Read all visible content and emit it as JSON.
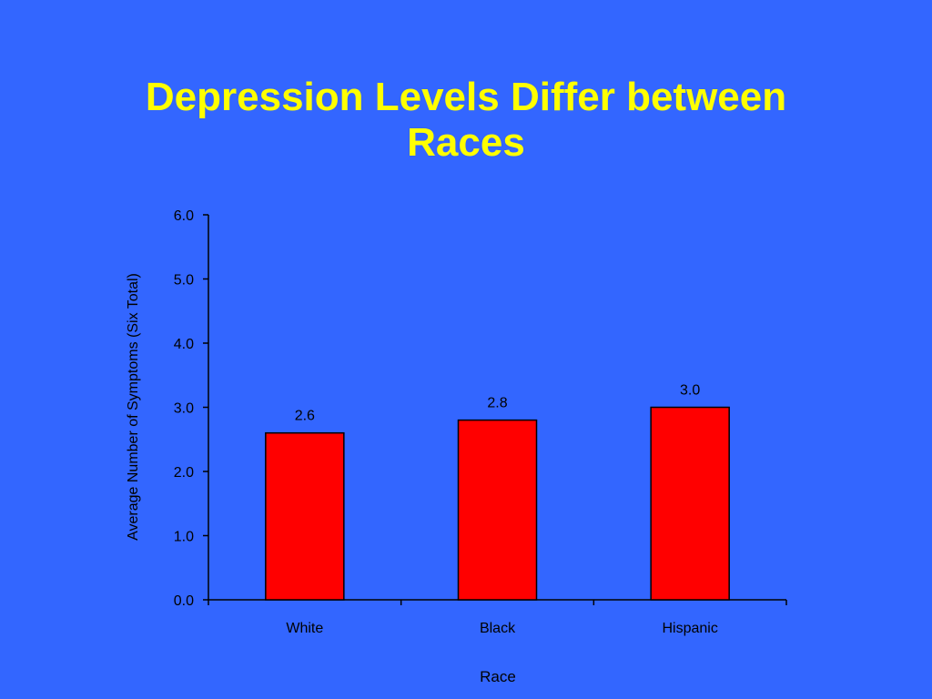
{
  "slide": {
    "title_line1": "Depression Levels Differ between",
    "title_line2": "Races",
    "background_color": "#3366FF",
    "title_color": "#FFFF00"
  },
  "chart_data": {
    "type": "bar",
    "categories": [
      "White",
      "Black",
      "Hispanic"
    ],
    "values": [
      2.6,
      2.8,
      3.0
    ],
    "data_labels": [
      "2.6",
      "2.8",
      "3.0"
    ],
    "xlabel": "Race",
    "ylabel": "Average Number of Symptoms (Six Total)",
    "ylim": [
      0,
      6
    ],
    "yticks": [
      "0.0",
      "1.0",
      "2.0",
      "3.0",
      "4.0",
      "5.0",
      "6.0"
    ],
    "bar_color": "#FF0000",
    "grid": false,
    "legend": "none"
  }
}
